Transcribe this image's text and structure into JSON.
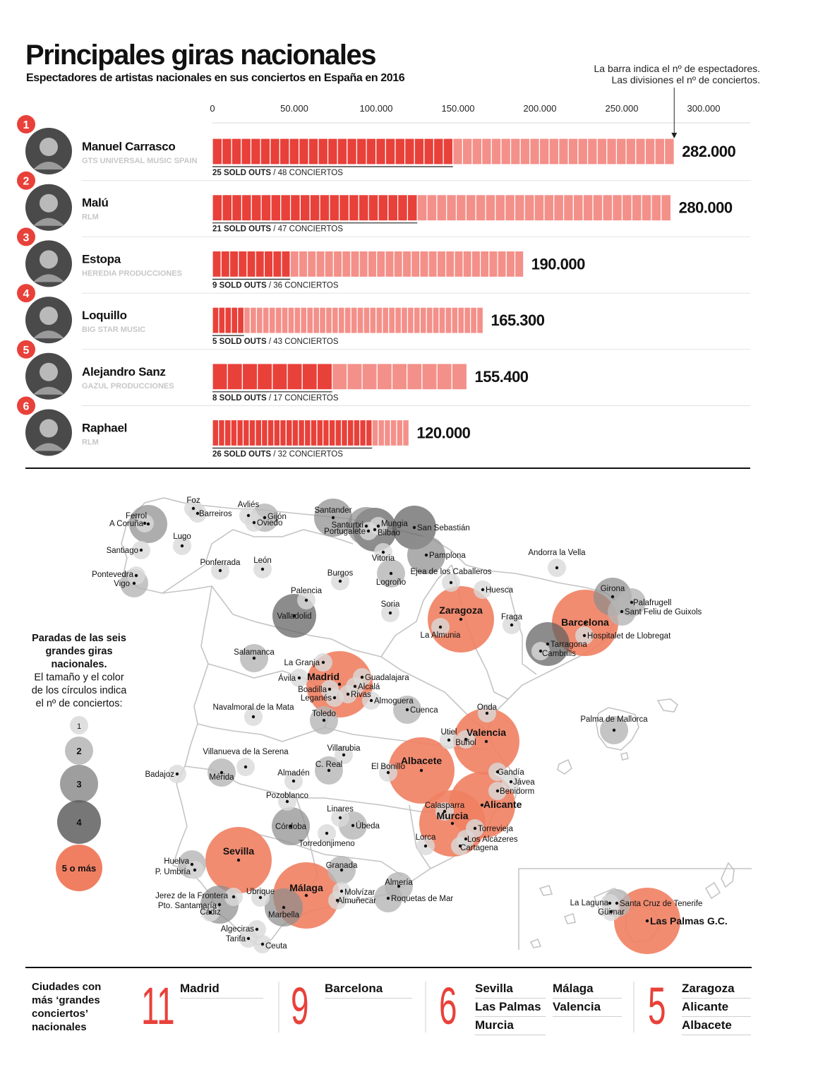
{
  "header": {
    "title": "Principales giras nacionales",
    "subtitle": "Espectadores de artistas nacionales en sus conciertos en España en 2016",
    "note_line1": "La barra indica el nº de espectadores.",
    "note_line2": "Las divisiones el nº de conciertos."
  },
  "colors": {
    "sold": "#e8413a",
    "concert": "#f4908a",
    "grey1": "#d9d9d9",
    "grey4": "#5f5f5f",
    "big": "#f07f62"
  },
  "chart_data": [
    {
      "type": "bar",
      "title": "Espectadores de artistas nacionales en sus conciertos en España en 2016",
      "xlim": [
        0,
        300000
      ],
      "ticks": [
        0,
        50000,
        100000,
        150000,
        200000,
        250000,
        300000
      ],
      "tick_labels": [
        "0",
        "50.000",
        "100.000",
        "150.000",
        "200.000",
        "250.000",
        "300.000"
      ],
      "sold_outs_label": "SOLD OUTS",
      "concerts_label": "CONCIERTOS",
      "artists": [
        {
          "rank": "1",
          "name": "Manuel Carrasco",
          "label": "GTS UNIVERSAL MUSIC SPAIN",
          "spectators": 282000,
          "value_text": "282.000",
          "sold_outs": 25,
          "concerts": 48
        },
        {
          "rank": "2",
          "name": "Malú",
          "label": "RLM",
          "spectators": 280000,
          "value_text": "280.000",
          "sold_outs": 21,
          "concerts": 47
        },
        {
          "rank": "3",
          "name": "Estopa",
          "label": "HEREDIA PRODUCCIONES",
          "spectators": 190000,
          "value_text": "190.000",
          "sold_outs": 9,
          "concerts": 36
        },
        {
          "rank": "4",
          "name": "Loquillo",
          "label": "BIG STAR MUSIC",
          "spectators": 165300,
          "value_text": "165.300",
          "sold_outs": 5,
          "concerts": 43
        },
        {
          "rank": "5",
          "name": "Alejandro Sanz",
          "label": "GAZUL PRODUCCIONES",
          "spectators": 155400,
          "value_text": "155.400",
          "sold_outs": 8,
          "concerts": 17
        },
        {
          "rank": "6",
          "name": "Raphael",
          "label": "RLM",
          "spectators": 120000,
          "value_text": "120.000",
          "sold_outs": 26,
          "concerts": 32
        }
      ]
    },
    {
      "type": "scatter",
      "title": "Paradas de las seis grandes giras nacionales",
      "legend": {
        "title_bold": [
          "Paradas de las seis",
          "grandes giras",
          "nacionales."
        ],
        "title_plain": [
          "El tamaño y el color",
          "de los círculos indica",
          "el nº de conciertos:"
        ],
        "items": [
          {
            "value": 1,
            "label": "1"
          },
          {
            "value": 2,
            "label": "2"
          },
          {
            "value": 3,
            "label": "3"
          },
          {
            "value": 4,
            "label": "4"
          },
          {
            "value": 5,
            "label": "5 o más"
          }
        ]
      },
      "cities": [
        {
          "name": "Ferrol",
          "n": 3
        },
        {
          "name": "A Coruña",
          "n": 1
        },
        {
          "name": "Foz",
          "n": 1
        },
        {
          "name": "Barreiros",
          "n": 1
        },
        {
          "name": "Lugo",
          "n": 1
        },
        {
          "name": "Santiago",
          "n": 1
        },
        {
          "name": "Pontevedra",
          "n": 1
        },
        {
          "name": "Vigo",
          "n": 2
        },
        {
          "name": "Avliés",
          "n": 1
        },
        {
          "name": "Gijón",
          "n": 2
        },
        {
          "name": "Oviedo",
          "n": 1
        },
        {
          "name": "Ponferrada",
          "n": 1
        },
        {
          "name": "León",
          "n": 1
        },
        {
          "name": "Santander",
          "n": 3
        },
        {
          "name": "Santurtxi",
          "n": 3
        },
        {
          "name": "Portugalete",
          "n": 1
        },
        {
          "name": "Mungia",
          "n": 1
        },
        {
          "name": "Bilbao",
          "n": 4
        },
        {
          "name": "San Sebastián",
          "n": 4
        },
        {
          "name": "Vitoria",
          "n": 1
        },
        {
          "name": "Pamplona",
          "n": 3
        },
        {
          "name": "Burgos",
          "n": 1
        },
        {
          "name": "Logroño",
          "n": 2
        },
        {
          "name": "Ejea de los Caballeros",
          "n": 1
        },
        {
          "name": "Huesca",
          "n": 1
        },
        {
          "name": "Andorra la Vella",
          "n": 1
        },
        {
          "name": "Palencia",
          "n": 1
        },
        {
          "name": "Soria",
          "n": 1
        },
        {
          "name": "Valladolid",
          "n": 4
        },
        {
          "name": "Zaragoza",
          "n": 5
        },
        {
          "name": "La Almunia",
          "n": 1
        },
        {
          "name": "Fraga",
          "n": 1
        },
        {
          "name": "Girona",
          "n": 3
        },
        {
          "name": "Palafrugell",
          "n": 2
        },
        {
          "name": "Sant Feliu de Guixols",
          "n": 2
        },
        {
          "name": "Barcelona",
          "n": 9
        },
        {
          "name": "Hospitalet de Llobregat",
          "n": 1
        },
        {
          "name": "Tarragona",
          "n": 4
        },
        {
          "name": "Cambrills",
          "n": 1
        },
        {
          "name": "Salamanca",
          "n": 2
        },
        {
          "name": "La Granja",
          "n": 1
        },
        {
          "name": "Ávila",
          "n": 1
        },
        {
          "name": "Madrid",
          "n": 11
        },
        {
          "name": "Guadalajara",
          "n": 1
        },
        {
          "name": "Alcalá",
          "n": 1
        },
        {
          "name": "Boadilla",
          "n": 1
        },
        {
          "name": "Leganés",
          "n": 1
        },
        {
          "name": "Rivas",
          "n": 1
        },
        {
          "name": "Almoguera",
          "n": 1
        },
        {
          "name": "Toledo",
          "n": 2
        },
        {
          "name": "Cuenca",
          "n": 2
        },
        {
          "name": "Navalmoral de la Mata",
          "n": 1
        },
        {
          "name": "Onda",
          "n": 1
        },
        {
          "name": "Palma de Mallorca",
          "n": 2
        },
        {
          "name": "Utiel",
          "n": 1
        },
        {
          "name": "Buñol",
          "n": 1
        },
        {
          "name": "Valencia",
          "n": 6
        },
        {
          "name": "Villanueva de la Serena",
          "n": 1
        },
        {
          "name": "Villarubia",
          "n": 1
        },
        {
          "name": "C. Real",
          "n": 2
        },
        {
          "name": "Albacete",
          "n": 5
        },
        {
          "name": "El Bonillo",
          "n": 1
        },
        {
          "name": "Badajoz",
          "n": 1
        },
        {
          "name": "Mérida",
          "n": 2
        },
        {
          "name": "Almadén",
          "n": 1
        },
        {
          "name": "Gandía",
          "n": 1
        },
        {
          "name": "Jávea",
          "n": 1
        },
        {
          "name": "Benidorm",
          "n": 1
        },
        {
          "name": "Pozoblanco",
          "n": 1
        },
        {
          "name": "Linares",
          "n": 1
        },
        {
          "name": "Úbeda",
          "n": 2
        },
        {
          "name": "Calasparra",
          "n": 1
        },
        {
          "name": "Alicante",
          "n": 5
        },
        {
          "name": "Córdoba",
          "n": 3
        },
        {
          "name": "Murcia",
          "n": 6
        },
        {
          "name": "Torrevieja",
          "n": 1
        },
        {
          "name": "Torredonjimeno",
          "n": 1
        },
        {
          "name": "Lorca",
          "n": 1
        },
        {
          "name": "Los Alcázeres",
          "n": 1
        },
        {
          "name": "Cartagena",
          "n": 1
        },
        {
          "name": "Sevilla",
          "n": 6
        },
        {
          "name": "Huelva",
          "n": 2
        },
        {
          "name": "P. Umbría",
          "n": 1
        },
        {
          "name": "Granada",
          "n": 2
        },
        {
          "name": "Almería",
          "n": 2
        },
        {
          "name": "Roquetas de Mar",
          "n": 2
        },
        {
          "name": "Ubrique",
          "n": 1
        },
        {
          "name": "Málaga",
          "n": 6
        },
        {
          "name": "Molvízar",
          "n": 1
        },
        {
          "name": "Almuñecar",
          "n": 1
        },
        {
          "name": "Jerez de la Frontera",
          "n": 1
        },
        {
          "name": "Pto. Santamaría",
          "n": 3
        },
        {
          "name": "Cádiz",
          "n": 1
        },
        {
          "name": "Marbella",
          "n": 3
        },
        {
          "name": "Algeciras",
          "n": 1
        },
        {
          "name": "Tarifa",
          "n": 1
        },
        {
          "name": "Ceuta",
          "n": 1
        },
        {
          "name": "La Laguna",
          "n": 1
        },
        {
          "name": "Santa Cruz de Tenerife",
          "n": 2
        },
        {
          "name": "Güimar",
          "n": 1
        },
        {
          "name": "Las Palmas G.C.",
          "n": 6
        }
      ]
    }
  ],
  "bottom": {
    "label": [
      "Ciudades con",
      "más ‘grandes",
      "conciertos’",
      "nacionales"
    ],
    "groups": [
      {
        "count": "11",
        "cities": [
          "Madrid"
        ]
      },
      {
        "count": "9",
        "cities": [
          "Barcelona"
        ]
      },
      {
        "count": "6",
        "cities": [
          "Sevilla",
          "Las Palmas",
          "Murcia",
          "Málaga",
          "Valencia"
        ]
      },
      {
        "count": "5",
        "cities": [
          "Zaragoza",
          "Alicante",
          "Albacete"
        ]
      }
    ]
  }
}
